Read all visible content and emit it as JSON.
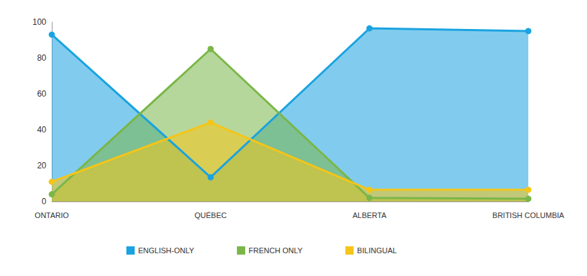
{
  "chart_data": {
    "type": "area",
    "categories": [
      "ONTARIO",
      "QUÉBEC",
      "ALBERTA",
      "BRITISH COLUMBIA"
    ],
    "series": [
      {
        "name": "ENGLISH-ONLY",
        "color": "#1aa3e0",
        "values": [
          93,
          13.5,
          96.5,
          95
        ]
      },
      {
        "name": "FRENCH ONLY",
        "color": "#7ab648",
        "values": [
          4,
          85,
          2,
          1.5
        ]
      },
      {
        "name": "BILINGUAL",
        "color": "#f5c518",
        "values": [
          11,
          44,
          6.5,
          6.5
        ]
      }
    ],
    "ylim": [
      0,
      100
    ],
    "yticks": [
      0,
      20,
      40,
      60,
      80,
      100
    ],
    "grid": false,
    "legend": "bottom",
    "marker": "circle"
  }
}
